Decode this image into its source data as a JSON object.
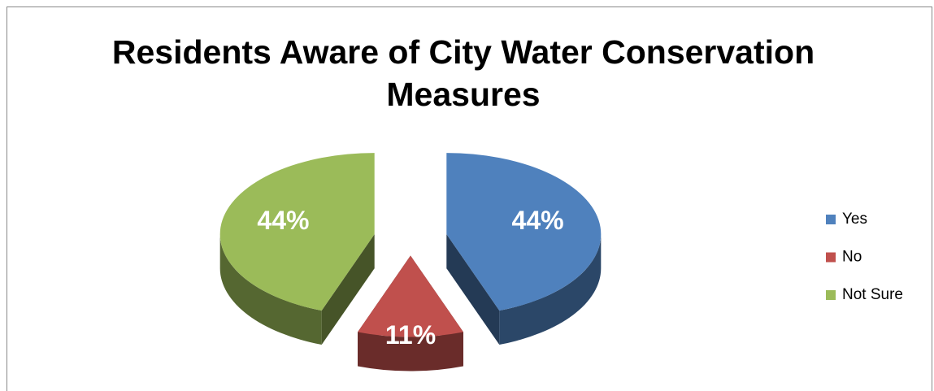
{
  "chart_data": {
    "type": "pie",
    "title": "Residents Aware of City Water Conservation Measures",
    "categories": [
      "Yes",
      "No",
      "Not Sure"
    ],
    "values": [
      44,
      11,
      44
    ],
    "value_labels": [
      "44%",
      "11%",
      "44%"
    ],
    "colors": [
      "#4f81bd",
      "#c0504d",
      "#9bbb59"
    ],
    "legend": "right"
  }
}
